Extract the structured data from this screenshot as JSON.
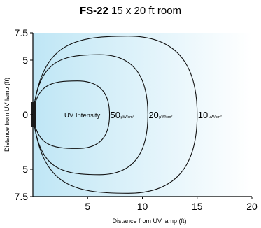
{
  "title": {
    "model": "FS-22",
    "subtitle": "15 x 20 ft room"
  },
  "chart_data": {
    "type": "area",
    "title": "FS-22 15 x 20 ft room",
    "xlabel": "Distance from UV lamp (ft)",
    "ylabel": "Distance from UV lamp (ft)",
    "xlim": [
      0,
      20
    ],
    "ylim": [
      -7.5,
      7.5
    ],
    "x_ticks": [
      "5",
      "10",
      "15",
      "20"
    ],
    "y_tick_labels": [
      "7.5",
      "5",
      "0",
      "5",
      "7.5"
    ],
    "y_tick_values": [
      7.5,
      5,
      0,
      -5,
      -7.5
    ],
    "series_label": "UV Intensity",
    "unit": "µW/cm²",
    "contours": [
      {
        "value": "50",
        "unit": "μW/cm²",
        "x_max": 7.0,
        "y_half": 3.1
      },
      {
        "value": "20",
        "unit": "μW/cm²",
        "x_max": 10.5,
        "y_half": 5.5
      },
      {
        "value": "10",
        "unit": "μW/cm²",
        "x_max": 15.0,
        "y_half": 7.2
      }
    ],
    "colors": {
      "fill_inner": "#bfe6f5",
      "fill_outer": "#ffffff",
      "line": "#111111",
      "lamp": "#1a1a1a"
    }
  }
}
